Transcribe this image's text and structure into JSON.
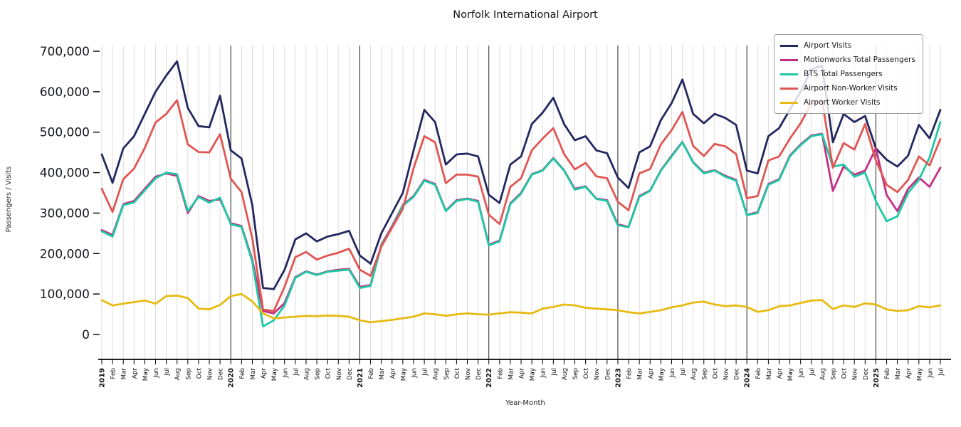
{
  "chart_data": {
    "type": "line",
    "title": "Norfolk International Airport",
    "xlabel": "Year-Month",
    "ylabel": "Passengers / Visits",
    "ylim": [
      0,
      700000
    ],
    "y_ticks": [
      0,
      100000,
      200000,
      300000,
      400000,
      500000,
      600000,
      700000
    ],
    "grid": "vertical-monthly",
    "legend_position": "top-right",
    "x": [
      "2019",
      "Feb",
      "Mar",
      "Apr",
      "May",
      "Jun",
      "Jul",
      "Aug",
      "Sep",
      "Oct",
      "Nov",
      "Dec",
      "2020",
      "Feb",
      "Mar",
      "Apr",
      "May",
      "Jun",
      "Jul",
      "Aug",
      "Sep",
      "Oct",
      "Nov",
      "Dec",
      "2021",
      "Feb",
      "Mar",
      "Apr",
      "May",
      "Jun",
      "Jul",
      "Aug",
      "Sep",
      "Oct",
      "Nov",
      "Dec",
      "2022",
      "Feb",
      "Mar",
      "Apr",
      "May",
      "Jun",
      "Jul",
      "Aug",
      "Sep",
      "Oct",
      "Nov",
      "Dec",
      "2023",
      "Feb",
      "Mar",
      "Apr",
      "May",
      "Jun",
      "Jul",
      "Aug",
      "Sep",
      "Oct",
      "Nov",
      "Dec",
      "2024",
      "Feb",
      "Mar",
      "Apr",
      "May",
      "Jun",
      "Jul",
      "Aug",
      "Sep",
      "Oct",
      "Nov",
      "Dec",
      "2025",
      "Feb",
      "Mar",
      "Apr",
      "May",
      "Jun",
      "Jul"
    ],
    "year_start_indices": [
      0,
      12,
      24,
      36,
      48,
      60,
      72
    ],
    "series": [
      {
        "name": "Airport Visits",
        "color": "#232760",
        "values": [
          445000,
          375000,
          460000,
          490000,
          545000,
          600000,
          640000,
          675000,
          560000,
          515000,
          512000,
          590000,
          455000,
          435000,
          320000,
          115000,
          112000,
          160000,
          235000,
          250000,
          230000,
          242000,
          248000,
          256000,
          195000,
          175000,
          250000,
          300000,
          350000,
          455000,
          555000,
          525000,
          420000,
          445000,
          447000,
          440000,
          345000,
          325000,
          420000,
          440000,
          520000,
          548000,
          585000,
          520000,
          480000,
          490000,
          455000,
          448000,
          388000,
          362000,
          450000,
          465000,
          530000,
          572000,
          630000,
          545000,
          522000,
          545000,
          535000,
          518000,
          405000,
          398000,
          490000,
          510000,
          556000,
          600000,
          655000,
          665000,
          475000,
          545000,
          525000,
          540000,
          460000,
          432000,
          415000,
          442000,
          518000,
          485000,
          555000
        ]
      },
      {
        "name": "Motionworks Total Passengers",
        "color": "#c42e85",
        "values": [
          258000,
          246000,
          322000,
          330000,
          360000,
          390000,
          398000,
          392000,
          300000,
          342000,
          330000,
          334000,
          275000,
          268000,
          185000,
          58000,
          52000,
          78000,
          142000,
          156000,
          148000,
          156000,
          160000,
          162000,
          118000,
          122000,
          222000,
          268000,
          320000,
          342000,
          382000,
          372000,
          306000,
          332000,
          336000,
          330000,
          222000,
          232000,
          324000,
          350000,
          396000,
          406000,
          436000,
          406000,
          360000,
          366000,
          336000,
          332000,
          272000,
          266000,
          342000,
          356000,
          406000,
          442000,
          476000,
          426000,
          400000,
          406000,
          392000,
          382000,
          296000,
          302000,
          372000,
          384000,
          442000,
          470000,
          492000,
          496000,
          355000,
          415000,
          395000,
          405000,
          460000,
          345000,
          305000,
          360000,
          388000,
          365000,
          412000
        ]
      },
      {
        "name": "BTS Total Passengers",
        "color": "#1ec8a5",
        "values": [
          255000,
          242000,
          320000,
          326000,
          356000,
          386000,
          400000,
          396000,
          305000,
          340000,
          326000,
          338000,
          272000,
          266000,
          180000,
          20000,
          35000,
          72000,
          140000,
          155000,
          147000,
          155000,
          158000,
          160000,
          115000,
          120000,
          220000,
          265000,
          318000,
          340000,
          380000,
          370000,
          305000,
          330000,
          335000,
          328000,
          220000,
          230000,
          322000,
          348000,
          395000,
          405000,
          435000,
          405000,
          358000,
          365000,
          335000,
          330000,
          270000,
          265000,
          340000,
          355000,
          405000,
          440000,
          475000,
          425000,
          398000,
          405000,
          390000,
          380000,
          295000,
          300000,
          370000,
          382000,
          440000,
          468000,
          490000,
          495000,
          415000,
          420000,
          390000,
          400000,
          330000,
          280000,
          292000,
          350000,
          382000,
          438000,
          525000
        ]
      },
      {
        "name": "Airport Non-Worker Visits",
        "color": "#e05552",
        "values": [
          360000,
          303000,
          384000,
          410000,
          461000,
          524000,
          545000,
          579000,
          470000,
          451000,
          450000,
          495000,
          385000,
          352000,
          238000,
          62000,
          58000,
          118000,
          191000,
          204000,
          185000,
          195000,
          202000,
          212000,
          160000,
          145000,
          217000,
          264000,
          310000,
          411000,
          490000,
          475000,
          374000,
          395000,
          395000,
          390000,
          296000,
          273000,
          365000,
          386000,
          455000,
          484000,
          510000,
          446000,
          408000,
          424000,
          391000,
          386000,
          328000,
          307000,
          398000,
          409000,
          470000,
          505000,
          550000,
          466000,
          441000,
          471000,
          465000,
          446000,
          337000,
          342000,
          430000,
          440000,
          484000,
          522000,
          571000,
          578000,
          412000,
          473000,
          457000,
          520000,
          430000,
          370000,
          352000,
          382000,
          440000,
          418000,
          483000
        ]
      },
      {
        "name": "Airport Worker Visits",
        "color": "#e7ba12",
        "values": [
          85000,
          72000,
          76000,
          80000,
          84000,
          76000,
          95000,
          96000,
          90000,
          64000,
          62000,
          73000,
          95000,
          100000,
          82000,
          52000,
          40000,
          42000,
          44000,
          46000,
          45000,
          47000,
          46000,
          44000,
          35000,
          30000,
          33000,
          36000,
          40000,
          44000,
          52000,
          50000,
          46000,
          50000,
          52000,
          50000,
          49000,
          52000,
          55000,
          54000,
          52000,
          64000,
          68000,
          74000,
          72000,
          66000,
          64000,
          62000,
          60000,
          55000,
          52000,
          56000,
          60000,
          67000,
          72000,
          79000,
          81000,
          74000,
          70000,
          72000,
          68000,
          56000,
          60000,
          70000,
          72000,
          78000,
          84000,
          85000,
          63000,
          72000,
          68000,
          77000,
          74000,
          62000,
          58000,
          60000,
          70000,
          67000,
          72000
        ]
      }
    ]
  }
}
